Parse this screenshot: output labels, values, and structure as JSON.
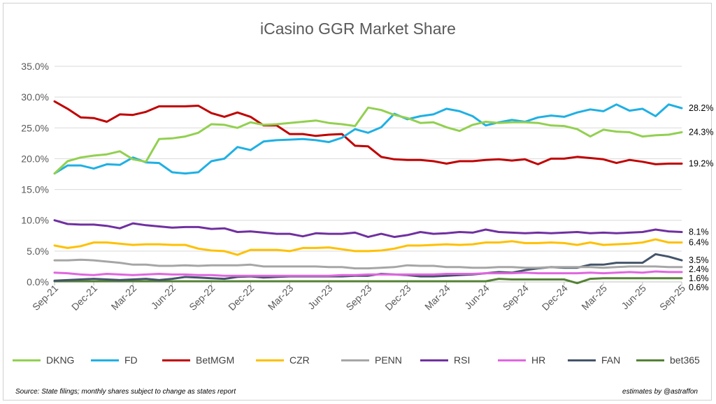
{
  "chart_data": {
    "type": "line",
    "title": "iCasino GGR Market Share",
    "xlabel": "",
    "ylabel": "",
    "ylim": [
      0,
      35
    ],
    "y_ticks": [
      "0.0%",
      "5.0%",
      "10.0%",
      "15.0%",
      "20.0%",
      "25.0%",
      "30.0%",
      "35.0%"
    ],
    "x_tick_labels": [
      "Sep-21",
      "Dec-21",
      "Mar-22",
      "Jun-22",
      "Sep-22",
      "Dec-22",
      "Mar-23",
      "Jun-23",
      "Sep-23",
      "Dec-23",
      "Mar-24",
      "Jun-24",
      "Sep-24",
      "Dec-24",
      "Mar-25",
      "Jun-25",
      "Sep-25"
    ],
    "x_months": [
      "Sep-21",
      "Oct-21",
      "Nov-21",
      "Dec-21",
      "Jan-22",
      "Feb-22",
      "Mar-22",
      "Apr-22",
      "May-22",
      "Jun-22",
      "Jul-22",
      "Aug-22",
      "Sep-22",
      "Oct-22",
      "Nov-22",
      "Dec-22",
      "Jan-23",
      "Feb-23",
      "Mar-23",
      "Apr-23",
      "May-23",
      "Jun-23",
      "Jul-23",
      "Aug-23",
      "Sep-23",
      "Oct-23",
      "Nov-23",
      "Dec-23",
      "Jan-24",
      "Feb-24",
      "Mar-24",
      "Apr-24",
      "May-24",
      "Jun-24",
      "Jul-24",
      "Aug-24",
      "Sep-24",
      "Oct-24",
      "Nov-24",
      "Dec-24",
      "Jan-25",
      "Feb-25",
      "Mar-25",
      "Apr-25",
      "May-25",
      "Jun-25",
      "Jul-25",
      "Aug-25",
      "Sep-25"
    ],
    "gridlines": "horizontal",
    "legend_position": "bottom",
    "series": [
      {
        "name": "DKNG",
        "color": "#92D050",
        "end_label": "24.3%",
        "values": [
          17.6,
          19.6,
          20.2,
          20.5,
          20.7,
          21.2,
          19.9,
          19.5,
          23.2,
          23.3,
          23.6,
          24.2,
          25.6,
          25.5,
          25.0,
          25.9,
          25.5,
          25.6,
          25.8,
          26.0,
          26.2,
          25.8,
          25.6,
          25.3,
          28.3,
          27.9,
          27.1,
          26.6,
          25.8,
          25.9,
          25.1,
          24.5,
          25.5,
          26.0,
          25.8,
          25.9,
          25.9,
          25.8,
          25.4,
          25.3,
          24.8,
          23.6,
          24.7,
          24.4,
          24.3,
          23.6,
          23.8,
          23.9,
          24.3
        ]
      },
      {
        "name": "FD",
        "color": "#1FB0E4",
        "end_label": "28.2%",
        "values": [
          17.6,
          18.9,
          18.9,
          18.4,
          19.1,
          19.0,
          20.2,
          19.4,
          19.3,
          17.8,
          17.6,
          17.8,
          19.6,
          20.0,
          21.9,
          21.4,
          22.8,
          23.0,
          23.1,
          23.2,
          23.0,
          22.7,
          23.4,
          24.8,
          24.2,
          25.1,
          27.3,
          26.4,
          26.9,
          27.2,
          28.1,
          27.7,
          26.9,
          25.4,
          25.9,
          26.3,
          26.0,
          26.7,
          27.0,
          26.8,
          27.5,
          28.0,
          27.7,
          28.8,
          27.8,
          28.1,
          26.9,
          28.8,
          28.2
        ]
      },
      {
        "name": "BetMGM",
        "color": "#C00000",
        "end_label": "19.2%",
        "values": [
          29.3,
          28.1,
          26.7,
          26.6,
          26.0,
          27.2,
          27.1,
          27.6,
          28.5,
          28.5,
          28.5,
          28.6,
          27.4,
          26.8,
          27.5,
          26.8,
          25.4,
          25.4,
          24.0,
          24.0,
          23.7,
          23.9,
          24.0,
          22.1,
          22.0,
          20.3,
          19.9,
          19.8,
          19.8,
          19.6,
          19.2,
          19.6,
          19.6,
          19.8,
          19.9,
          19.7,
          19.9,
          19.1,
          20.0,
          20.0,
          20.3,
          20.1,
          19.9,
          19.3,
          19.8,
          19.5,
          19.1,
          19.2,
          19.2
        ]
      },
      {
        "name": "CZR",
        "color": "#FFC000",
        "end_label": "6.4%",
        "values": [
          5.9,
          5.5,
          5.8,
          6.4,
          6.4,
          6.2,
          6.0,
          6.1,
          6.1,
          6.0,
          6.0,
          5.4,
          5.1,
          5.0,
          4.4,
          5.2,
          5.2,
          5.2,
          5.0,
          5.5,
          5.5,
          5.6,
          5.3,
          5.0,
          5.0,
          5.1,
          5.4,
          5.9,
          5.9,
          6.0,
          6.1,
          6.0,
          6.1,
          6.4,
          6.4,
          6.6,
          6.3,
          6.3,
          6.4,
          6.3,
          6.0,
          6.4,
          6.0,
          6.1,
          6.2,
          6.4,
          6.9,
          6.4,
          6.4
        ]
      },
      {
        "name": "PENN",
        "color": "#A6A6A6",
        "end_label": "2.4%",
        "values": [
          3.5,
          3.5,
          3.6,
          3.5,
          3.3,
          3.1,
          2.8,
          2.8,
          2.6,
          2.6,
          2.7,
          2.6,
          2.7,
          2.7,
          2.7,
          2.8,
          2.5,
          2.5,
          2.5,
          2.5,
          2.5,
          2.4,
          2.4,
          2.2,
          2.2,
          2.3,
          2.4,
          2.7,
          2.6,
          2.6,
          2.4,
          2.4,
          2.3,
          2.3,
          2.4,
          2.4,
          2.3,
          2.3,
          2.4,
          2.4,
          2.4,
          2.4,
          2.3,
          2.4,
          2.5,
          2.5,
          2.5,
          2.4,
          2.4
        ]
      },
      {
        "name": "RSI",
        "color": "#7030A0",
        "end_label": "8.1%",
        "values": [
          10.0,
          9.4,
          9.3,
          9.3,
          9.1,
          8.7,
          9.5,
          9.2,
          9.0,
          8.8,
          8.9,
          8.9,
          8.6,
          8.7,
          8.1,
          8.2,
          8.0,
          7.8,
          7.8,
          7.4,
          7.9,
          7.8,
          7.8,
          8.0,
          7.3,
          7.8,
          7.3,
          7.6,
          8.1,
          7.8,
          7.9,
          8.1,
          8.0,
          8.5,
          8.1,
          8.0,
          7.9,
          8.0,
          7.9,
          8.0,
          8.1,
          7.9,
          8.0,
          7.9,
          8.0,
          8.1,
          8.5,
          8.2,
          8.1
        ]
      },
      {
        "name": "HR",
        "color": "#E066E0",
        "end_label": "1.6%",
        "values": [
          1.5,
          1.4,
          1.2,
          1.1,
          1.3,
          1.2,
          1.1,
          1.2,
          1.3,
          1.2,
          1.2,
          1.1,
          1.1,
          1.0,
          1.0,
          1.0,
          1.0,
          1.0,
          1.0,
          1.0,
          1.0,
          1.0,
          1.1,
          1.1,
          1.2,
          1.2,
          1.2,
          1.2,
          1.2,
          1.2,
          1.3,
          1.3,
          1.3,
          1.4,
          1.4,
          1.4,
          1.5,
          1.4,
          1.4,
          1.4,
          1.4,
          1.5,
          1.4,
          1.5,
          1.6,
          1.5,
          1.7,
          1.6,
          1.6
        ]
      },
      {
        "name": "FAN",
        "color": "#44546A",
        "end_label": "3.5%",
        "values": [
          0.2,
          0.3,
          0.4,
          0.5,
          0.4,
          0.3,
          0.4,
          0.5,
          0.3,
          0.5,
          0.8,
          0.7,
          0.6,
          0.5,
          0.8,
          0.9,
          0.7,
          0.8,
          0.9,
          0.9,
          0.9,
          0.9,
          0.9,
          1.0,
          1.0,
          1.3,
          1.2,
          1.1,
          0.9,
          0.9,
          1.0,
          1.1,
          1.2,
          1.4,
          1.6,
          1.5,
          1.9,
          2.2,
          2.4,
          2.3,
          2.3,
          2.8,
          2.8,
          3.1,
          3.1,
          3.1,
          4.5,
          4.1,
          3.5
        ]
      },
      {
        "name": "bet365",
        "color": "#548235",
        "end_label": "0.6%",
        "values": [
          0.1,
          0.1,
          0.1,
          0.1,
          0.1,
          0.1,
          0.1,
          0.1,
          0.1,
          0.1,
          0.1,
          0.1,
          0.1,
          0.1,
          0.1,
          0.1,
          0.1,
          0.1,
          0.1,
          0.1,
          0.1,
          0.1,
          0.1,
          0.1,
          0.1,
          0.1,
          0.1,
          0.1,
          0.1,
          0.1,
          0.1,
          0.1,
          0.1,
          0.1,
          0.5,
          0.4,
          0.4,
          0.4,
          0.4,
          0.4,
          -0.2,
          0.5,
          0.6,
          0.6,
          0.6,
          0.6,
          0.6,
          0.6,
          0.6
        ]
      }
    ]
  },
  "footer": {
    "source": "Source: State filings; monthly shares subject to change as states report",
    "credit": "estimates by @astraffon"
  }
}
